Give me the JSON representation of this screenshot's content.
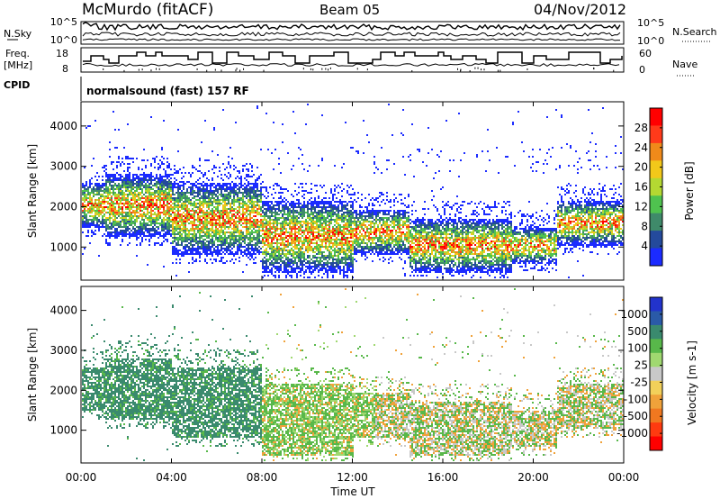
{
  "header": {
    "station": "McMurdo (fitACF)",
    "beam": "Beam 05",
    "date": "04/Nov/2012"
  },
  "chart_data": {
    "type": "heatmap",
    "title": "McMurdo (fitACF)",
    "x_axis": {
      "label": "Time UT",
      "range": [
        "00:00",
        "00:00"
      ],
      "range_hours": [
        0,
        24
      ],
      "ticks": [
        "00:00",
        "04:00",
        "08:00",
        "12:00",
        "16:00",
        "20:00",
        "00:00"
      ]
    },
    "top_panels": {
      "nsky": {
        "left_label": "N.Sky",
        "right_label": "N.Search",
        "left_ticks": [
          "10^5",
          "10^0"
        ],
        "right_ticks": [
          "10^5",
          "10^0"
        ]
      },
      "freq": {
        "left_label": "Freq.",
        "left_unit": "[MHz]",
        "right_label": "Nave",
        "left_ticks": [
          "18",
          "8"
        ],
        "right_ticks": [
          "60",
          "0"
        ]
      },
      "cpid": {
        "label": "CPID",
        "text": "normalsound (fast) 157 RF"
      }
    },
    "panels": [
      {
        "parameter": "Power",
        "y_axis": {
          "label": "Slant Range [km]",
          "ticks": [
            1000,
            2000,
            3000,
            4000
          ],
          "range": [
            180,
            4600
          ]
        },
        "colorbar": {
          "label": "Power [dB]",
          "ticks": [
            "4",
            "8",
            "12",
            "16",
            "20",
            "24",
            "28"
          ],
          "colors": [
            "#1b2bff",
            "#244a9c",
            "#3f8a6a",
            "#4fc24f",
            "#b4d832",
            "#f2c81a",
            "#f08a1a",
            "#ff3a1a",
            "#ff0000"
          ]
        }
      },
      {
        "parameter": "Velocity",
        "y_axis": {
          "label": "Slant Range [km]",
          "ticks": [
            1000,
            2000,
            3000,
            4000
          ],
          "range": [
            180,
            4600
          ]
        },
        "colorbar": {
          "label": "Velocity [m s-1]",
          "ticks": [
            "1000",
            "500",
            "100",
            "25",
            "-25",
            "-100",
            "-500",
            "-1000"
          ],
          "colors": [
            "#2233cc",
            "#2a5aa8",
            "#3a8a6e",
            "#58b84a",
            "#a0d870",
            "#c8c8c8",
            "#f2d05a",
            "#f0a23a",
            "#f07820",
            "#ff3a10",
            "#ff0000"
          ]
        }
      }
    ]
  }
}
